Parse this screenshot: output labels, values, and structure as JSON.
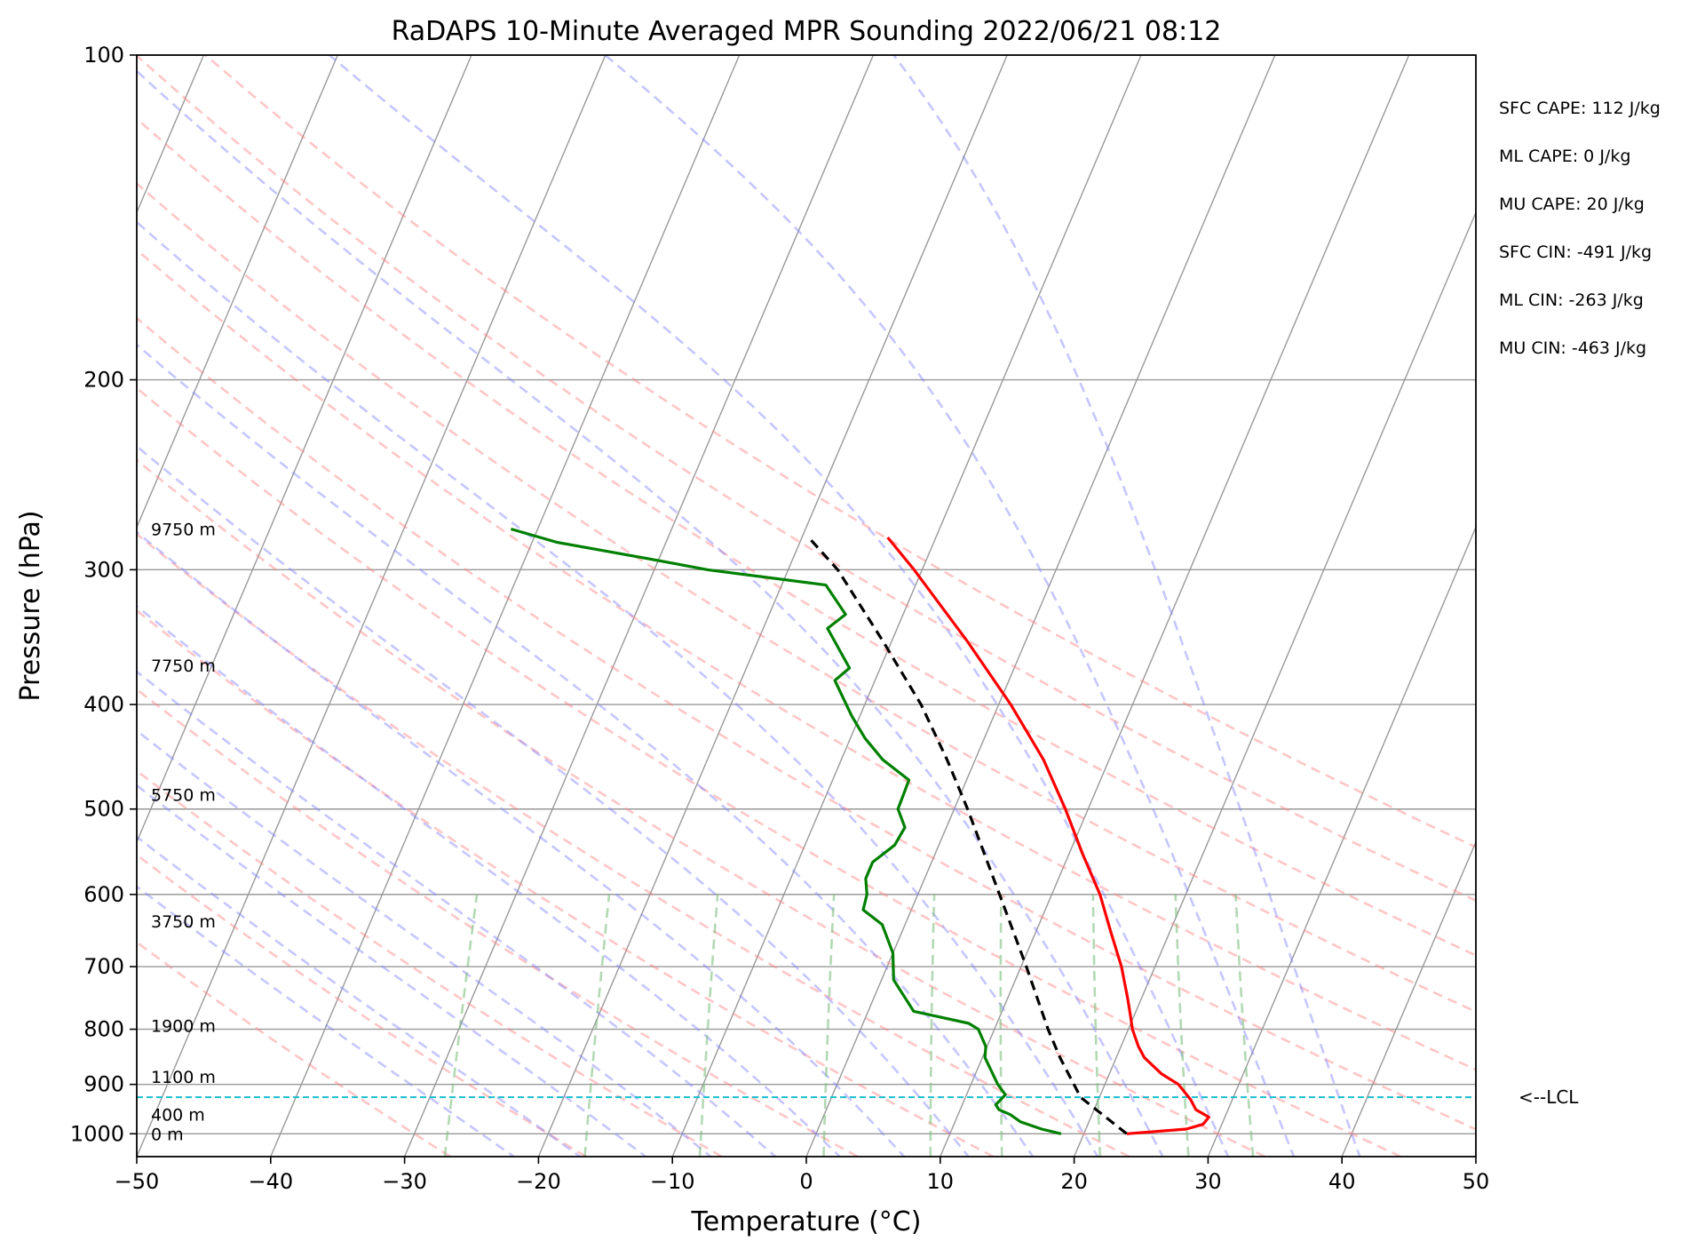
{
  "chart_data": {
    "type": "line",
    "title": "RaDAPS 10-Minute Averaged MPR Sounding 2022/06/21 08:12",
    "xlabel": "Temperature (°C)",
    "ylabel": "Pressure (hPa)",
    "xlim": [
      -50,
      50
    ],
    "ylim": [
      1050,
      100
    ],
    "y_scale": "log",
    "grid": true,
    "x_ticks": [
      "−50",
      "−40",
      "−30",
      "−20",
      "−10",
      "0",
      "10",
      "20",
      "30",
      "40",
      "50"
    ],
    "y_ticks": [
      {
        "p": 100,
        "label": "100"
      },
      {
        "p": 200,
        "label": "200"
      },
      {
        "p": 300,
        "label": "300"
      },
      {
        "p": 400,
        "label": "400"
      },
      {
        "p": 500,
        "label": "500"
      },
      {
        "p": 600,
        "label": "600"
      },
      {
        "p": 700,
        "label": "700"
      },
      {
        "p": 800,
        "label": "800"
      },
      {
        "p": 900,
        "label": "900"
      },
      {
        "p": 1000,
        "label": "1000"
      }
    ],
    "height_labels": [
      {
        "p": 275,
        "label": "9750 m"
      },
      {
        "p": 368,
        "label": "7750 m"
      },
      {
        "p": 485,
        "label": "5750 m"
      },
      {
        "p": 635,
        "label": "3750 m"
      },
      {
        "p": 794,
        "label": "1900 m"
      },
      {
        "p": 885,
        "label": "1100 m"
      },
      {
        "p": 960,
        "label": "400 m"
      },
      {
        "p": 1000,
        "label": "0 m"
      }
    ],
    "lcl": {
      "p": 925,
      "label": "<--LCL"
    },
    "stats": [
      "SFC CAPE: 112 J/kg",
      "ML CAPE: 0 J/kg",
      "MU CAPE: 20 J/kg",
      "SFC CIN: -491 J/kg",
      "ML CIN: -263 J/kg",
      "MU CIN: -463 J/kg"
    ],
    "colors": {
      "temperature": "#ff0000",
      "dewpoint": "#008000",
      "parcel": "#000000",
      "lcl": "#17becf",
      "dry_adiabats": "#ff8080",
      "moist_adiabats": "#8080ff",
      "mixing_ratio": "#80c080",
      "isotherms": "#999999",
      "isobars": "#999999"
    },
    "series": [
      {
        "name": "temperature",
        "points": [
          {
            "p": 1000,
            "t": 23.2
          },
          {
            "p": 990,
            "t": 27.5
          },
          {
            "p": 980,
            "t": 28.6
          },
          {
            "p": 965,
            "t": 28.8
          },
          {
            "p": 950,
            "t": 27.6
          },
          {
            "p": 930,
            "t": 26.9
          },
          {
            "p": 900,
            "t": 25.5
          },
          {
            "p": 880,
            "t": 23.9
          },
          {
            "p": 850,
            "t": 22.1
          },
          {
            "p": 830,
            "t": 21.3
          },
          {
            "p": 800,
            "t": 20.3
          },
          {
            "p": 780,
            "t": 19.8
          },
          {
            "p": 750,
            "t": 19.0
          },
          {
            "p": 700,
            "t": 17.5
          },
          {
            "p": 650,
            "t": 15.6
          },
          {
            "p": 600,
            "t": 13.6
          },
          {
            "p": 550,
            "t": 11.0
          },
          {
            "p": 500,
            "t": 8.3
          },
          {
            "p": 450,
            "t": 5.1
          },
          {
            "p": 400,
            "t": 0.9
          },
          {
            "p": 350,
            "t": -4.3
          },
          {
            "p": 300,
            "t": -10.6
          },
          {
            "p": 280,
            "t": -13.6
          }
        ]
      },
      {
        "name": "dewpoint",
        "points": [
          {
            "p": 1000,
            "t": 18.3
          },
          {
            "p": 990,
            "t": 16.7
          },
          {
            "p": 975,
            "t": 14.9
          },
          {
            "p": 960,
            "t": 13.9
          },
          {
            "p": 950,
            "t": 12.9
          },
          {
            "p": 940,
            "t": 12.5
          },
          {
            "p": 920,
            "t": 12.9
          },
          {
            "p": 900,
            "t": 12.0
          },
          {
            "p": 880,
            "t": 11.3
          },
          {
            "p": 850,
            "t": 10.2
          },
          {
            "p": 830,
            "t": 9.9
          },
          {
            "p": 800,
            "t": 8.8
          },
          {
            "p": 790,
            "t": 7.9
          },
          {
            "p": 770,
            "t": 3.4
          },
          {
            "p": 720,
            "t": 0.9
          },
          {
            "p": 680,
            "t": 0.0
          },
          {
            "p": 640,
            "t": -1.7
          },
          {
            "p": 620,
            "t": -3.6
          },
          {
            "p": 600,
            "t": -3.8
          },
          {
            "p": 580,
            "t": -4.4
          },
          {
            "p": 560,
            "t": -4.4
          },
          {
            "p": 540,
            "t": -3.3
          },
          {
            "p": 520,
            "t": -3.1
          },
          {
            "p": 500,
            "t": -4.2
          },
          {
            "p": 470,
            "t": -4.3
          },
          {
            "p": 450,
            "t": -6.9
          },
          {
            "p": 430,
            "t": -8.9
          },
          {
            "p": 410,
            "t": -10.6
          },
          {
            "p": 380,
            "t": -13.0
          },
          {
            "p": 370,
            "t": -12.3
          },
          {
            "p": 340,
            "t": -15.2
          },
          {
            "p": 330,
            "t": -14.3
          },
          {
            "p": 310,
            "t": -16.7
          },
          {
            "p": 300,
            "t": -26.0
          },
          {
            "p": 293,
            "t": -30.8
          },
          {
            "p": 283,
            "t": -38.1
          },
          {
            "p": 275,
            "t": -42.0
          }
        ]
      },
      {
        "name": "parcel",
        "points": [
          {
            "p": 1000,
            "t": 23.2
          },
          {
            "p": 925,
            "t": 18.6
          },
          {
            "p": 850,
            "t": 15.8
          },
          {
            "p": 800,
            "t": 14.0
          },
          {
            "p": 700,
            "t": 10.4
          },
          {
            "p": 600,
            "t": 6.1
          },
          {
            "p": 500,
            "t": 1.0
          },
          {
            "p": 450,
            "t": -2.1
          },
          {
            "p": 400,
            "t": -5.8
          },
          {
            "p": 350,
            "t": -10.6
          },
          {
            "p": 300,
            "t": -16.3
          },
          {
            "p": 280,
            "t": -19.5
          }
        ]
      }
    ]
  }
}
